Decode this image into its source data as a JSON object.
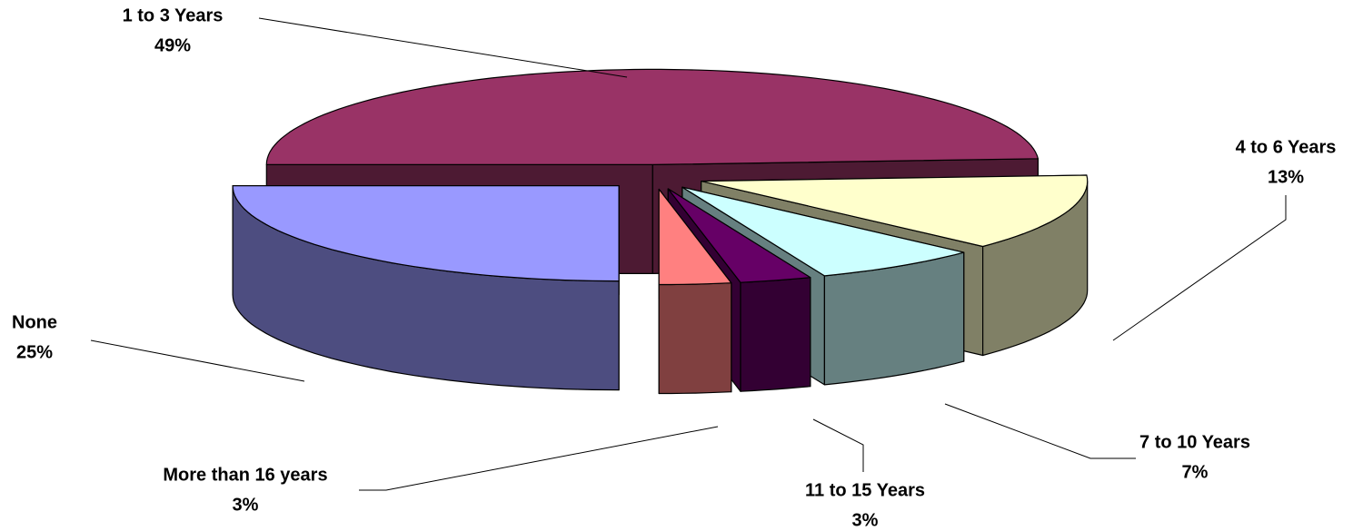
{
  "chart_data": {
    "type": "pie3d",
    "categories": [
      "1 to 3 Years",
      "4 to 6 Years",
      "7 to 10 Years",
      "11 to 15 Years",
      "More than 16 years",
      "None"
    ],
    "values": [
      49,
      13,
      7,
      3,
      3,
      25
    ],
    "value_labels": [
      "49%",
      "13%",
      "7%",
      "3%",
      "3%",
      "25%"
    ],
    "colors": [
      "#993366",
      "#ffffcc",
      "#ccffff",
      "#660066",
      "#ff8080",
      "#9999ff"
    ],
    "side_colors": [
      "#4d1a33",
      "#808066",
      "#668080",
      "#330033",
      "#804040",
      "#4d4d80"
    ]
  }
}
